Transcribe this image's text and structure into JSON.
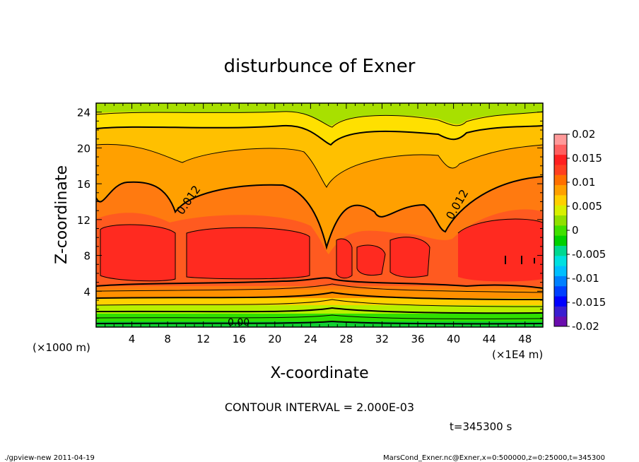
{
  "chart_data": {
    "type": "heatmap",
    "title": "disturbunce of Exner",
    "xlabel": "X-coordinate",
    "ylabel": "Z-coordinate",
    "x_unit_left": "(×1000 m)",
    "x_unit_right": "(×1E4 m)",
    "xlim": [
      0,
      50
    ],
    "ylim": [
      0,
      25
    ],
    "xticks": [
      "4",
      "8",
      "12",
      "16",
      "20",
      "24",
      "28",
      "32",
      "36",
      "40",
      "44",
      "48"
    ],
    "xtick_values": [
      4,
      8,
      12,
      16,
      20,
      24,
      28,
      32,
      36,
      40,
      44,
      48
    ],
    "yticks": [
      "4",
      "8",
      "12",
      "16",
      "20",
      "24"
    ],
    "ytick_values": [
      4,
      8,
      12,
      16,
      20,
      24
    ],
    "colorbar": {
      "range": [
        -0.02,
        0.02
      ],
      "labels": [
        "0.02",
        "0.015",
        "0.01",
        "0.005",
        "0",
        "-0.005",
        "-0.01",
        "-0.015",
        "-0.02"
      ],
      "label_values": [
        0.02,
        0.015,
        0.01,
        0.005,
        0,
        -0.005,
        -0.01,
        -0.015,
        -0.02
      ],
      "colors": [
        "#6a0dad",
        "#3a1ed0",
        "#0000ff",
        "#0040ff",
        "#0080ff",
        "#00bfff",
        "#00e0e0",
        "#00d890",
        "#00d000",
        "#40e000",
        "#90e000",
        "#d8f000",
        "#ffd000",
        "#ffa000",
        "#ff7000",
        "#ff4020",
        "#ff2020",
        "#ff6060",
        "#ff9a9a"
      ]
    },
    "contour_labels": [
      "0.012",
      "0.012",
      "0.00"
    ],
    "contour_interval_text": "CONTOUR INTERVAL = 2.000E-03",
    "time_text": "t=345300 s"
  },
  "footer": {
    "left": "./gpview-new   2011-04-19",
    "right": "MarsCond_Exner.nc@Exner,x=0:500000,z=0:25000,t=345300"
  }
}
